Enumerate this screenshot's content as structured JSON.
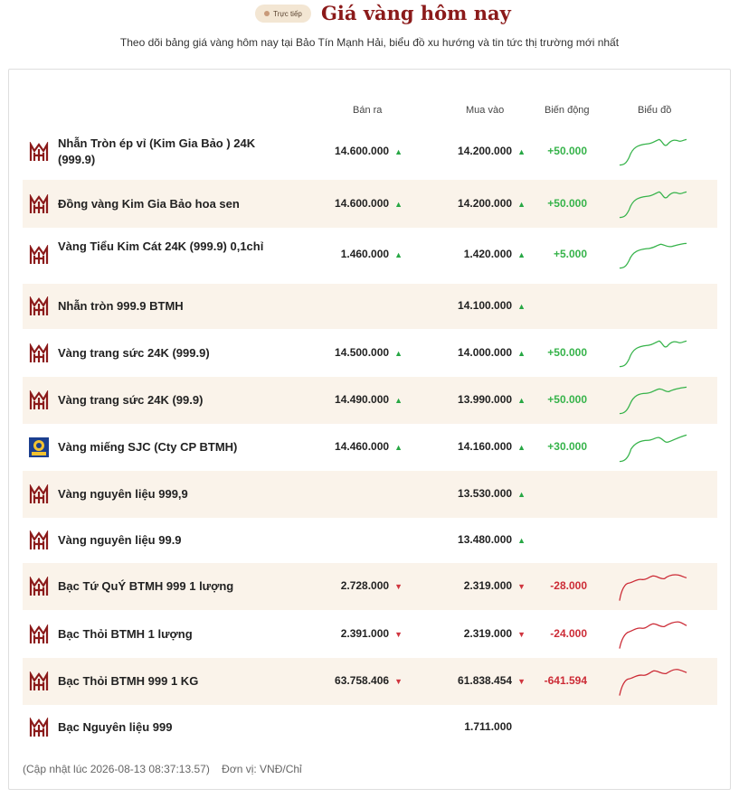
{
  "header": {
    "badge": "Trực tiếp",
    "title": "Giá vàng hôm nay",
    "subtitle": "Theo dõi bảng giá vàng hôm nay tại Bảo Tín Mạnh Hải, biểu đồ xu hướng và tin tức thị trường mới nhất"
  },
  "columns": {
    "sell": "Bán ra",
    "buy": "Mua vào",
    "change": "Biến động",
    "chart": "Biểu đồ"
  },
  "colors": {
    "up": "#36b34a",
    "down": "#cc2b36",
    "title": "#8b1a1a",
    "shade": "#faf3ea"
  },
  "rows": [
    {
      "name": "Nhẫn Tròn ép vỉ (Kim Gia Bảo ) 24K (999.9)",
      "logo": "btmh-logo-icon",
      "sell": "14.600.000",
      "sell_dir": "up",
      "buy": "14.200.000",
      "buy_dir": "up",
      "change": "+50.000",
      "trend": "up"
    },
    {
      "name": "Đồng vàng Kim Gia Bảo hoa sen",
      "logo": "btmh-logo-icon",
      "sell": "14.600.000",
      "sell_dir": "up",
      "buy": "14.200.000",
      "buy_dir": "up",
      "change": "+50.000",
      "trend": "up"
    },
    {
      "name": "Vàng Tiểu Kim Cát 24K (999.9) 0,1chỉ",
      "logo": "btmh-logo-icon",
      "sell": "1.460.000",
      "sell_dir": "up",
      "buy": "1.420.000",
      "buy_dir": "up",
      "change": "+5.000",
      "trend": "up"
    },
    {
      "name": "Nhẫn tròn 999.9 BTMH",
      "logo": "btmh-logo-icon",
      "sell": "",
      "sell_dir": "",
      "buy": "14.100.000",
      "buy_dir": "up",
      "change": "",
      "trend": ""
    },
    {
      "name": "Vàng trang sức 24K (999.9)",
      "logo": "btmh-logo-icon",
      "sell": "14.500.000",
      "sell_dir": "up",
      "buy": "14.000.000",
      "buy_dir": "up",
      "change": "+50.000",
      "trend": "up"
    },
    {
      "name": "Vàng trang sức 24K (99.9)",
      "logo": "btmh-logo-icon",
      "sell": "14.490.000",
      "sell_dir": "up",
      "buy": "13.990.000",
      "buy_dir": "up",
      "change": "+50.000",
      "trend": "up"
    },
    {
      "name": "Vàng miếng SJC (Cty CP BTMH)",
      "logo": "sjc-logo-icon",
      "sell": "14.460.000",
      "sell_dir": "up",
      "buy": "14.160.000",
      "buy_dir": "up",
      "change": "+30.000",
      "trend": "up"
    },
    {
      "name": "Vàng nguyên liệu 999,9",
      "logo": "btmh-logo-icon",
      "sell": "",
      "sell_dir": "",
      "buy": "13.530.000",
      "buy_dir": "up",
      "change": "",
      "trend": ""
    },
    {
      "name": "Vàng nguyên liệu 99.9",
      "logo": "btmh-logo-icon",
      "sell": "",
      "sell_dir": "",
      "buy": "13.480.000",
      "buy_dir": "up",
      "change": "",
      "trend": ""
    },
    {
      "name": "Bạc Tứ QuÝ BTMH 999 1 lượng",
      "logo": "btmh-logo-icon",
      "sell": "2.728.000",
      "sell_dir": "down",
      "buy": "2.319.000",
      "buy_dir": "down",
      "change": "-28.000",
      "trend": "down"
    },
    {
      "name": "Bạc Thỏi BTMH 1 lượng",
      "logo": "btmh-logo-icon",
      "sell": "2.391.000",
      "sell_dir": "down",
      "buy": "2.319.000",
      "buy_dir": "down",
      "change": "-24.000",
      "trend": "down"
    },
    {
      "name": "Bạc Thỏi BTMH 999 1 KG",
      "logo": "btmh-logo-icon",
      "sell": "63.758.406",
      "sell_dir": "down",
      "buy": "61.838.454",
      "buy_dir": "down",
      "change": "-641.594",
      "trend": "down"
    },
    {
      "name": "Bạc Nguyên liệu 999",
      "logo": "btmh-logo-icon",
      "sell": "",
      "sell_dir": "",
      "buy": "1.711.000",
      "buy_dir": "",
      "change": "",
      "trend": ""
    }
  ],
  "footer": {
    "updated": "(Cập nhật lúc 2026-08-13 08:37:13.57)",
    "unit": "Đơn vị: VNĐ/Chỉ"
  }
}
